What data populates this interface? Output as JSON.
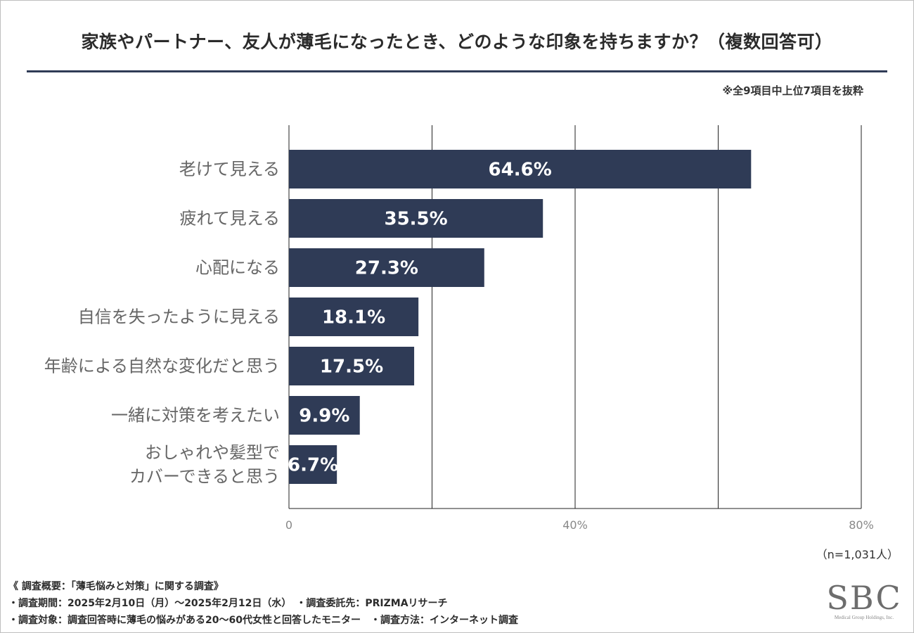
{
  "chart_data": {
    "type": "bar",
    "orientation": "horizontal",
    "title": "家族やパートナー、友人が薄毛になったとき、どのような印象を持ちますか？（複数回答可）",
    "subtitle": "※全9項目中上位7項目を抜粋",
    "categories": [
      [
        "老けて見える"
      ],
      [
        "疲れて見える"
      ],
      [
        "心配になる"
      ],
      [
        "自信を失ったように見える"
      ],
      [
        "年齢による自然な変化だと思う"
      ],
      [
        "一緒に対策を考えたい"
      ],
      [
        "おしゃれや髪型で",
        "カバーできると思う"
      ]
    ],
    "values": [
      64.6,
      35.5,
      27.3,
      18.1,
      17.5,
      9.9,
      6.7
    ],
    "value_labels": [
      "64.6%",
      "35.5%",
      "27.3%",
      "18.1%",
      "17.5%",
      "9.9%",
      "6.7%"
    ],
    "xlim": [
      0,
      80
    ],
    "gridlines": [
      0,
      20,
      40,
      60,
      80
    ],
    "tick_labels": [
      {
        "value": 0,
        "label": "0"
      },
      {
        "value": 40,
        "label": "40%"
      },
      {
        "value": 80,
        "label": "80%"
      }
    ],
    "bar_color": "#2f3b56",
    "grid_color": "#222222",
    "sample_note": "（n=1,031人）"
  },
  "footer": {
    "line1": "《 調査概要：「薄毛悩みと対策」に関する調査》",
    "line2": "・調査期間：2025年2月10日（月）～2025年2月12日（水）　・調査委託先：PRIZMAリサーチ",
    "line3": "・調査対象：調査回答時に薄毛の悩みがある20～60代女性と回答したモニター　・調査方法：インターネット調査"
  },
  "logo": {
    "mark": "SBC",
    "sub": "Medical Group Holdings, Inc."
  }
}
